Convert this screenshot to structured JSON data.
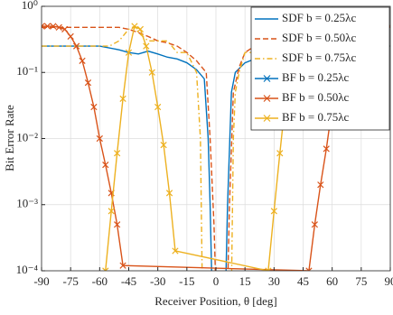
{
  "chart_data": {
    "type": "line",
    "xlabel": "Receiver Position, θ [deg]",
    "ylabel": "Bit Error Rate",
    "xlim": [
      -90,
      90
    ],
    "xticks": [
      -90,
      -75,
      -60,
      -45,
      -30,
      -15,
      0,
      15,
      30,
      45,
      60,
      75,
      90
    ],
    "ylim": [
      0.0001,
      1
    ],
    "log_y": true,
    "yticks": [
      {
        "value": 1,
        "label": "10⁰"
      },
      {
        "value": 0.1,
        "label": "10⁻¹"
      },
      {
        "value": 0.01,
        "label": "10⁻²"
      },
      {
        "value": 0.001,
        "label": "10⁻³"
      },
      {
        "value": 0.0001,
        "label": "10⁻⁴"
      }
    ],
    "grid": true,
    "legend": "upper right",
    "series": [
      {
        "name": "SDF b = 0.25λc",
        "color": "#0072BD",
        "style": "solid",
        "marker": "none",
        "x": [
          -90,
          -60,
          -50,
          -45,
          -40,
          -35,
          -30,
          -25,
          -20,
          -15,
          -10,
          -6,
          -4,
          -3,
          -2,
          5,
          6,
          8,
          10,
          15,
          20,
          25,
          30,
          35,
          40,
          45,
          50,
          60,
          90
        ],
        "values": [
          0.25,
          0.25,
          0.22,
          0.2,
          0.19,
          0.21,
          0.19,
          0.17,
          0.16,
          0.14,
          0.11,
          0.08,
          0.01,
          0.001,
          5e-05,
          5e-05,
          0.001,
          0.05,
          0.1,
          0.14,
          0.16,
          0.17,
          0.19,
          0.21,
          0.19,
          0.2,
          0.22,
          0.25,
          0.25
        ]
      },
      {
        "name": "SDF b = 0.50λc",
        "color": "#D95319",
        "style": "dashed",
        "marker": "none",
        "x": [
          -90,
          -50,
          -45,
          -40,
          -35,
          -30,
          -25,
          -20,
          -15,
          -10,
          -5,
          -3,
          -1,
          0,
          6,
          7,
          9,
          12,
          15,
          20,
          25,
          30,
          35,
          40,
          45,
          50,
          90
        ],
        "values": [
          0.48,
          0.48,
          0.45,
          0.4,
          0.35,
          0.3,
          0.28,
          0.25,
          0.2,
          0.15,
          0.1,
          0.01,
          0.0005,
          5e-05,
          5e-05,
          0.001,
          0.05,
          0.12,
          0.2,
          0.25,
          0.28,
          0.3,
          0.35,
          0.4,
          0.45,
          0.48,
          0.48
        ]
      },
      {
        "name": "SDF b = 0.75λc",
        "color": "#EDB120",
        "style": "dashdot",
        "marker": "none",
        "x": [
          -90,
          -55,
          -50,
          -45,
          -42,
          -40,
          -35,
          -30,
          -25,
          -20,
          -15,
          -10,
          -8,
          -7,
          8,
          9,
          10,
          12,
          15,
          20,
          25,
          30,
          35,
          40,
          42,
          45,
          50,
          55,
          90
        ],
        "values": [
          0.25,
          0.25,
          0.3,
          0.45,
          0.5,
          0.4,
          0.3,
          0.3,
          0.3,
          0.2,
          0.2,
          0.1,
          0.01,
          5e-05,
          5e-05,
          0.01,
          0.05,
          0.1,
          0.2,
          0.2,
          0.3,
          0.3,
          0.3,
          0.4,
          0.5,
          0.45,
          0.3,
          0.25,
          0.25
        ]
      },
      {
        "name": "BF b = 0.25λc",
        "color": "#0072BD",
        "style": "solid",
        "marker": "x",
        "x": [],
        "values": []
      },
      {
        "name": "BF b = 0.50λc",
        "color": "#D95319",
        "style": "solid",
        "marker": "x",
        "x": [
          -90,
          -87,
          -84,
          -81,
          -78,
          -75,
          -72,
          -69,
          -66,
          -63,
          -60,
          -57,
          -54,
          -51,
          -48,
          48,
          51,
          54,
          57,
          60,
          63,
          66,
          69,
          72,
          75,
          78,
          81,
          84,
          87,
          90
        ],
        "values": [
          0.5,
          0.5,
          0.5,
          0.48,
          0.45,
          0.35,
          0.25,
          0.15,
          0.07,
          0.03,
          0.01,
          0.004,
          0.0015,
          0.0005,
          0.00012,
          0.0001,
          0.0005,
          0.002,
          0.007,
          0.03,
          0.07,
          0.15,
          0.25,
          0.35,
          0.45,
          0.48,
          0.5,
          0.5,
          0.5,
          0.5
        ]
      },
      {
        "name": "BF b = 0.75λc",
        "color": "#EDB120",
        "style": "solid",
        "marker": "x",
        "x": [
          -57,
          -54,
          -51,
          -48,
          -45,
          -42,
          -39,
          -36,
          -33,
          -30,
          -27,
          -24,
          -21,
          27,
          30,
          33,
          36,
          39,
          42,
          45,
          48,
          51
        ],
        "values": [
          0.0001,
          0.0008,
          0.006,
          0.04,
          0.2,
          0.5,
          0.45,
          0.25,
          0.1,
          0.03,
          0.008,
          0.0015,
          0.0002,
          0.0001,
          0.0008,
          0.006,
          0.04,
          0.15,
          0.4,
          0.5,
          0.3,
          0.1
        ]
      }
    ]
  }
}
